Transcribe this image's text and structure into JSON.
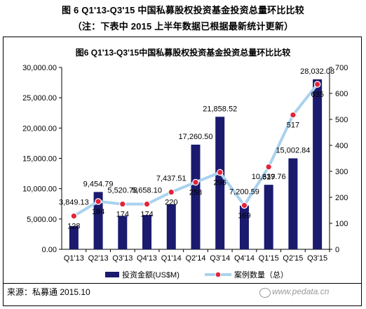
{
  "header": {
    "line1": "图 6 Q1'13-Q3'15 中国私募股权投资基金投资总量环比比较",
    "line2": "（注：下表中 2015 上半年数据已根据最新统计更新）"
  },
  "chart_data": {
    "type": "bar",
    "title": "图6 Q1'13-Q3'15中国私募股权投资基金投资总量环比比较",
    "categories": [
      "Q1'13",
      "Q2'13",
      "Q3'13",
      "Q4'13",
      "Q1'14",
      "Q2'14",
      "Q3'14",
      "Q4'14",
      "Q1'15",
      "Q2'15",
      "Q3'15"
    ],
    "series": [
      {
        "name": "投资金额(US$M)",
        "type": "bar",
        "axis": "left",
        "values": [
          3849.13,
          9454.79,
          5520.78,
          5658.1,
          7437.51,
          17260.5,
          21858.52,
          7200.59,
          10639.76,
          15002.84,
          28032.08
        ],
        "labels": [
          "3,849.13",
          "9,454.79",
          "5,520.78",
          "5,658.10",
          "7,437.51",
          "17,260.50",
          "21,858.52",
          "7,200.59",
          "10,639.76",
          "15,002.84",
          "28,032.08"
        ],
        "color": "#1a1a6e"
      },
      {
        "name": "案例数量（总）",
        "type": "line",
        "axis": "right",
        "values": [
          128,
          184,
          174,
          174,
          220,
          258,
          296,
          169,
          317,
          517,
          635
        ],
        "labels": [
          "128",
          "184",
          "174",
          "174",
          "220",
          "258",
          "296",
          "169",
          "317",
          "517",
          "635"
        ],
        "color": "#a9d2ee",
        "marker_color": "#e2243b"
      }
    ],
    "y_left": {
      "min": 0,
      "max": 30000,
      "step": 5000,
      "ticks": [
        "0.00",
        "5,000.00",
        "10,000.00",
        "15,000.00",
        "20,000.00",
        "25,000.00",
        "30,000.00"
      ]
    },
    "y_right": {
      "min": 0,
      "max": 700,
      "step": 100,
      "ticks": [
        "0",
        "100",
        "200",
        "300",
        "400",
        "500",
        "600",
        "700"
      ]
    },
    "legend_position": "bottom",
    "grid": false
  },
  "footer": {
    "source": "来源：私募通  2015.10",
    "watermark": "www.pedata.cn"
  }
}
